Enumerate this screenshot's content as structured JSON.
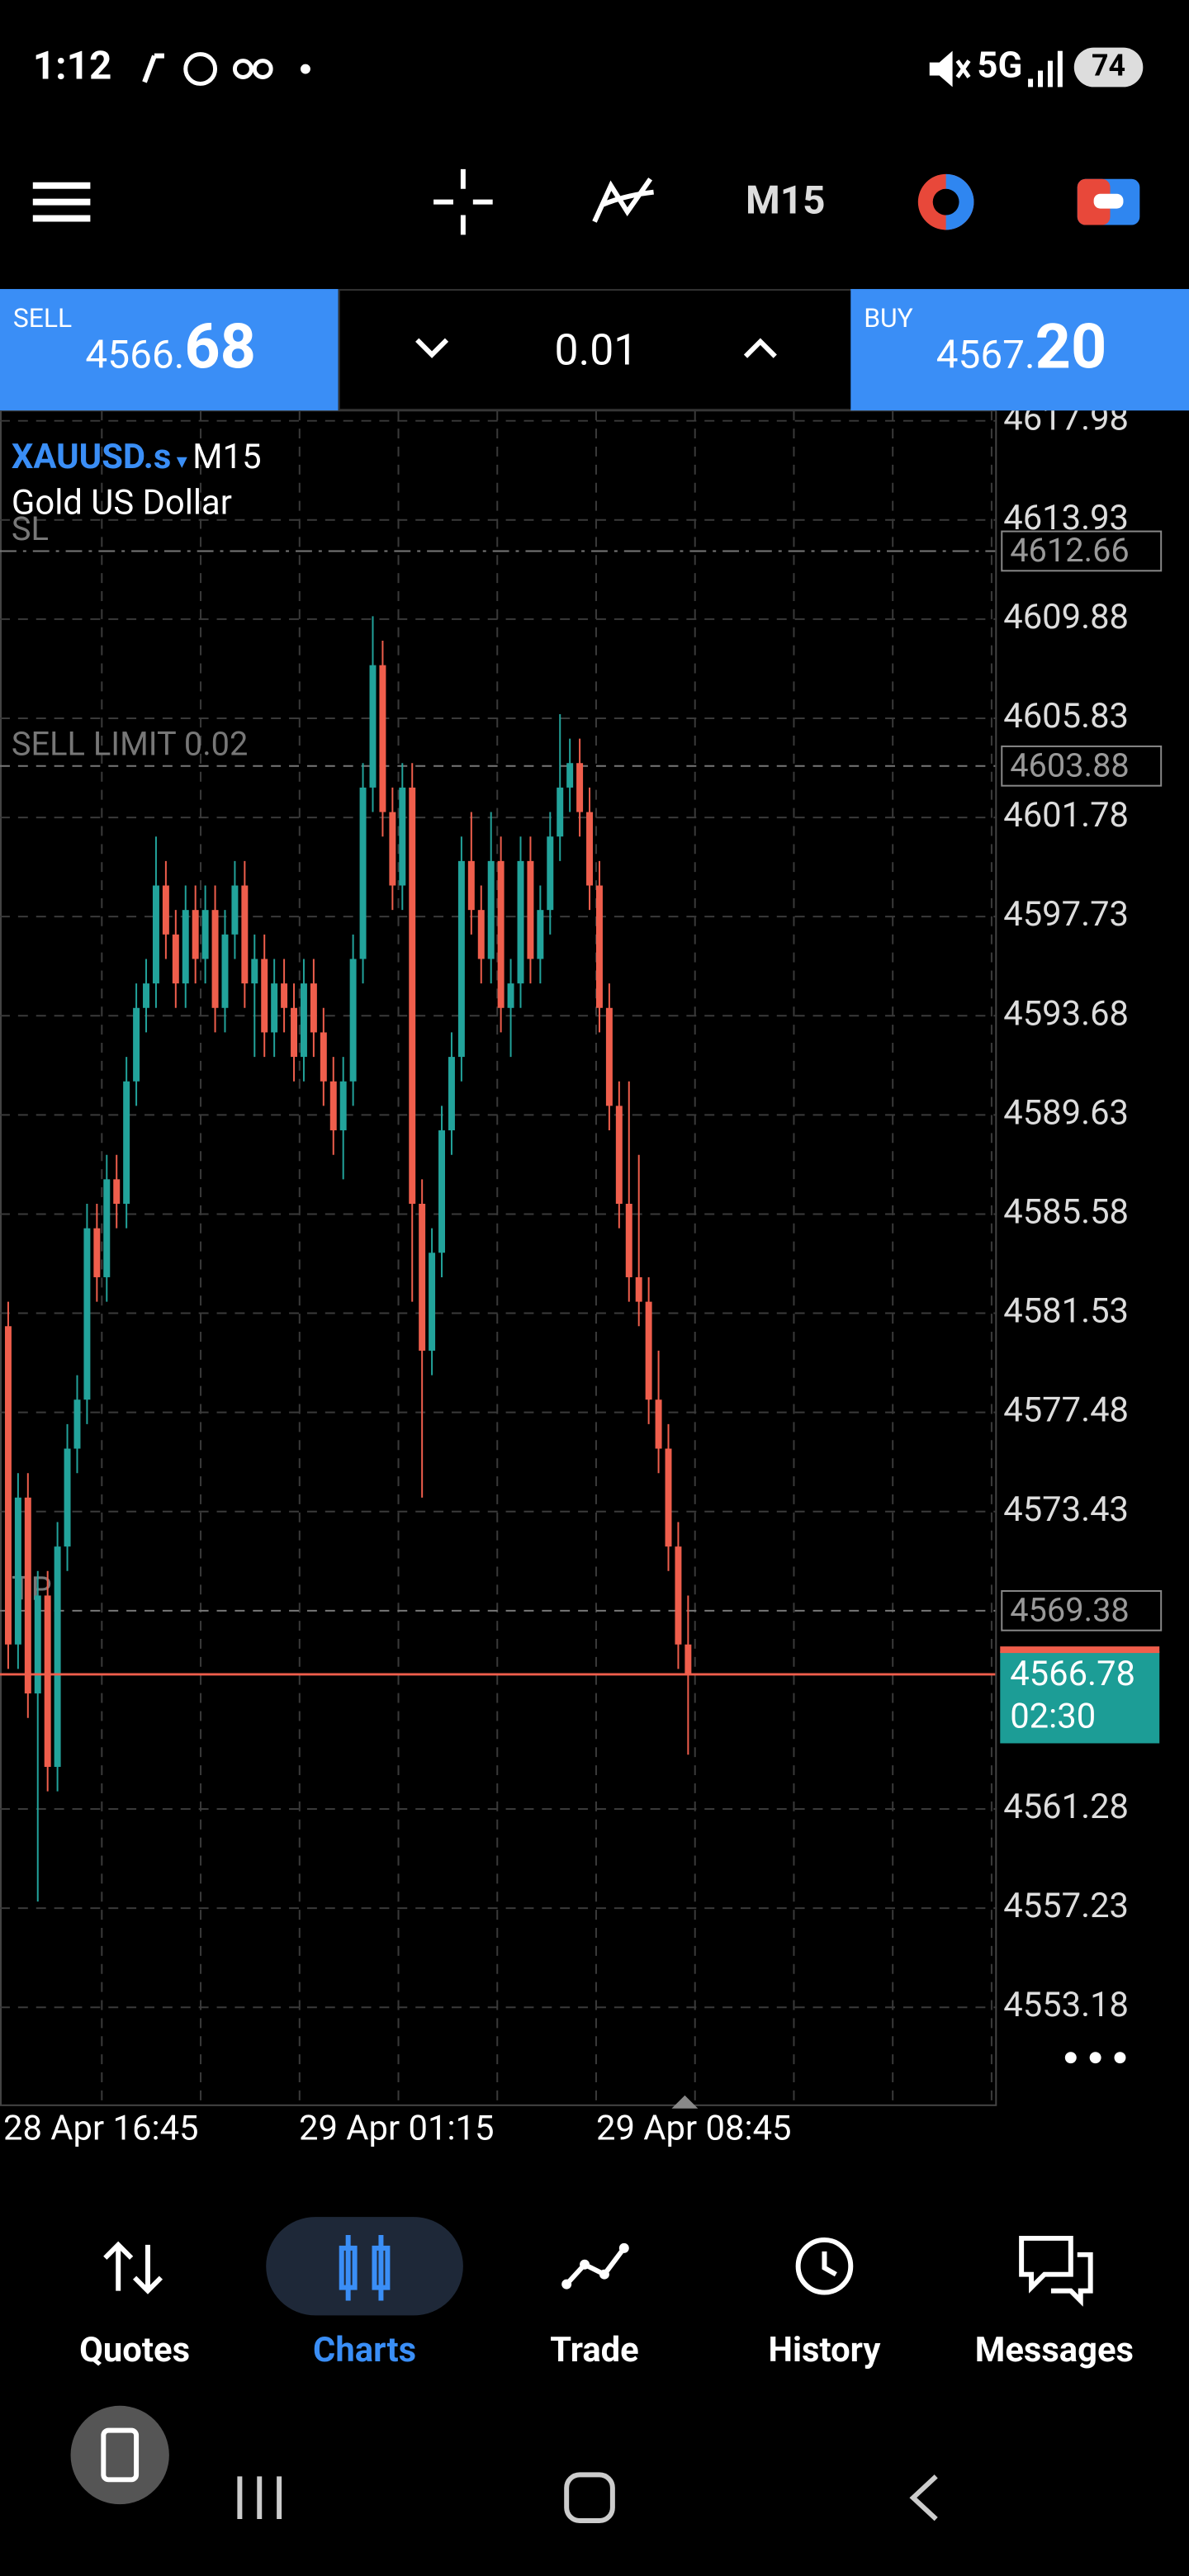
{
  "status_bar": {
    "time": "1:12",
    "network": "5G",
    "battery": "74"
  },
  "toolbar": {
    "timeframe": "M15"
  },
  "trade_panel": {
    "sell": {
      "label": "SELL",
      "price_small": "4566.",
      "price_large": "68"
    },
    "volume": "0.01",
    "buy": {
      "label": "BUY",
      "price_small": "4567.",
      "price_large": "20"
    }
  },
  "chart": {
    "type": "candlestick",
    "symbol": "XAUUSD.s",
    "timeframe": "M15",
    "description": "Gold US Dollar",
    "ylim": [
      4549.18,
      4618.4
    ],
    "yticks": [
      4617.98,
      4613.93,
      4609.88,
      4605.83,
      4601.78,
      4597.73,
      4593.68,
      4589.63,
      4585.58,
      4581.53,
      4577.48,
      4573.43,
      4561.28,
      4557.23,
      4553.18
    ],
    "xticks": [
      "28 Apr 16:45",
      "29 Apr 01:15",
      "29 Apr 08:45"
    ],
    "grid": true,
    "colors": {
      "up": "#22a39b",
      "down": "#ef5e4c"
    },
    "levels": [
      {
        "label": "SL",
        "value": 4612.66
      },
      {
        "label": "SELL LIMIT 0.02",
        "value": 4603.88
      },
      {
        "label": "TP",
        "value": 4569.38
      }
    ],
    "current": {
      "value": 4566.78,
      "countdown": "02:30"
    },
    "candles": [
      [
        4581,
        4582,
        4567,
        4568
      ],
      [
        4568,
        4575,
        4567,
        4574
      ],
      [
        4574,
        4575,
        4565,
        4566
      ],
      [
        4566,
        4571,
        4557.5,
        4570
      ],
      [
        4570,
        4571,
        4562,
        4563
      ],
      [
        4563,
        4573,
        4562,
        4572
      ],
      [
        4572,
        4577,
        4571,
        4576
      ],
      [
        4576,
        4579,
        4575,
        4578
      ],
      [
        4578,
        4586,
        4577,
        4585
      ],
      [
        4585,
        4586,
        4582,
        4583
      ],
      [
        4583,
        4588,
        4582,
        4587
      ],
      [
        4587,
        4588,
        4585,
        4586
      ],
      [
        4586,
        4592,
        4585,
        4591
      ],
      [
        4591,
        4595,
        4590,
        4594
      ],
      [
        4594,
        4596,
        4593,
        4595
      ],
      [
        4595,
        4601,
        4594,
        4599
      ],
      [
        4599,
        4600,
        4596,
        4597
      ],
      [
        4597,
        4598,
        4594,
        4595
      ],
      [
        4595,
        4599,
        4594,
        4598
      ],
      [
        4598,
        4599,
        4595,
        4596
      ],
      [
        4596,
        4599,
        4595,
        4598
      ],
      [
        4598,
        4599,
        4593,
        4594
      ],
      [
        4594,
        4598,
        4593,
        4597
      ],
      [
        4597,
        4600,
        4596,
        4599
      ],
      [
        4599,
        4600,
        4594,
        4595
      ],
      [
        4595,
        4597,
        4592,
        4596
      ],
      [
        4596,
        4597,
        4592,
        4593
      ],
      [
        4593,
        4596,
        4592,
        4595
      ],
      [
        4595,
        4596,
        4593,
        4594
      ],
      [
        4594,
        4595,
        4591,
        4592
      ],
      [
        4592,
        4596,
        4591,
        4595
      ],
      [
        4595,
        4596,
        4592,
        4593
      ],
      [
        4593,
        4594,
        4590,
        4591
      ],
      [
        4591,
        4592,
        4588,
        4589
      ],
      [
        4589,
        4592,
        4587,
        4591
      ],
      [
        4591,
        4597,
        4590,
        4596
      ],
      [
        4596,
        4604,
        4595,
        4603
      ],
      [
        4603,
        4610,
        4602,
        4608
      ],
      [
        4608,
        4609,
        4601,
        4602
      ],
      [
        4602,
        4603,
        4598,
        4599
      ],
      [
        4599,
        4604,
        4598,
        4603
      ],
      [
        4603,
        4604,
        4582,
        4586
      ],
      [
        4586,
        4587,
        4574,
        4580
      ],
      [
        4580,
        4585,
        4579,
        4584
      ],
      [
        4584,
        4590,
        4583,
        4589
      ],
      [
        4589,
        4593,
        4588,
        4592
      ],
      [
        4592,
        4601,
        4591,
        4600
      ],
      [
        4600,
        4602,
        4597,
        4598
      ],
      [
        4598,
        4599,
        4595,
        4596
      ],
      [
        4596,
        4602,
        4595,
        4600
      ],
      [
        4600,
        4601,
        4593,
        4594
      ],
      [
        4594,
        4596,
        4592,
        4595
      ],
      [
        4595,
        4601,
        4594,
        4600
      ],
      [
        4600,
        4601,
        4595,
        4596
      ],
      [
        4596,
        4599,
        4595,
        4598
      ],
      [
        4598,
        4602,
        4597,
        4601
      ],
      [
        4601,
        4606,
        4600,
        4603
      ],
      [
        4603,
        4605,
        4602,
        4604
      ],
      [
        4604,
        4605,
        4601,
        4602
      ],
      [
        4602,
        4603,
        4598,
        4599
      ],
      [
        4599,
        4600,
        4593,
        4594
      ],
      [
        4594,
        4595,
        4589,
        4590
      ],
      [
        4590,
        4591,
        4585,
        4586
      ],
      [
        4586,
        4591,
        4582,
        4583
      ],
      [
        4583,
        4588,
        4581,
        4582
      ],
      [
        4582,
        4583,
        4577,
        4578
      ],
      [
        4578,
        4580,
        4575,
        4576
      ],
      [
        4576,
        4577,
        4571,
        4572
      ],
      [
        4572,
        4573,
        4567,
        4568
      ],
      [
        4568,
        4570,
        4563.5,
        4566.78
      ]
    ]
  },
  "nav": {
    "items": [
      "Quotes",
      "Charts",
      "Trade",
      "History",
      "Messages"
    ]
  }
}
